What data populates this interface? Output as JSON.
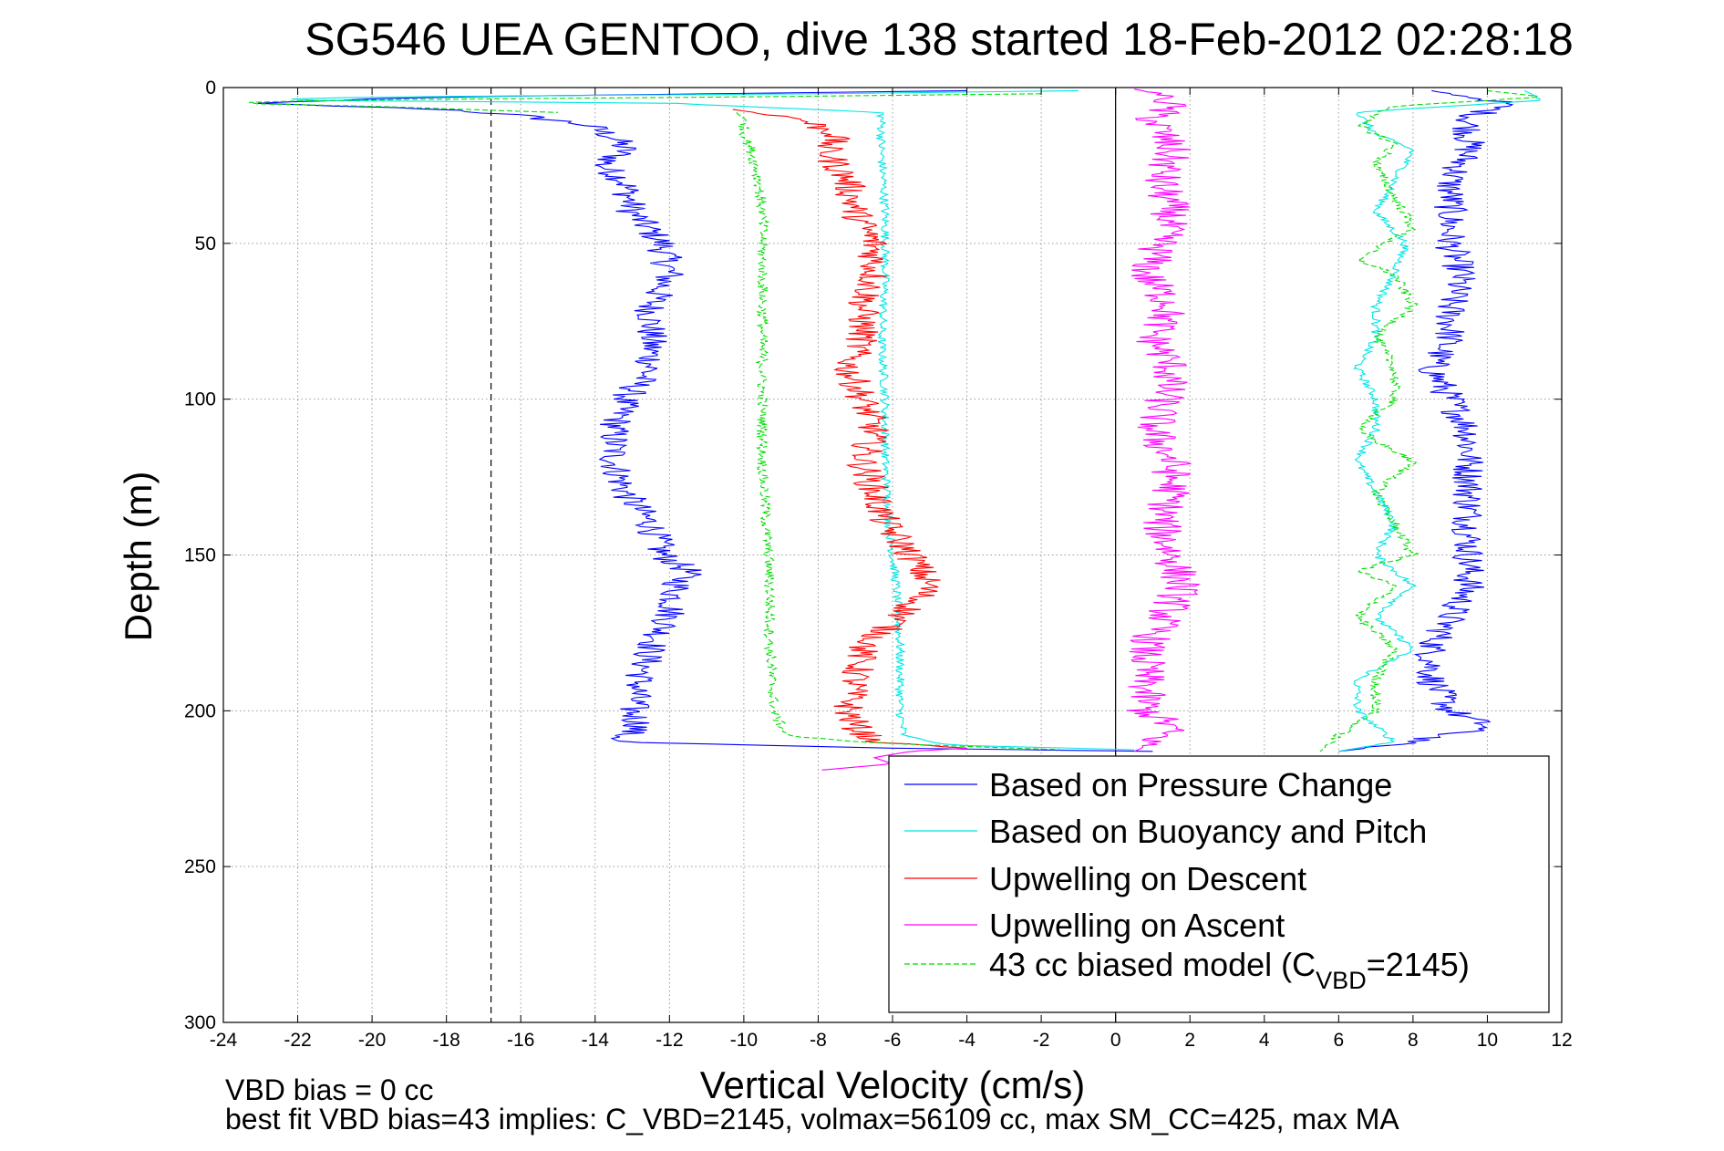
{
  "chart_data": {
    "type": "line",
    "title": "SG546 UEA GENTOO, dive 138 started 18-Feb-2012 02:28:18",
    "xlabel": "Vertical Velocity (cm/s)",
    "ylabel": "Depth (m)",
    "xlim": [
      -24,
      12
    ],
    "ylim": [
      0,
      300
    ],
    "y_reversed": true,
    "grid": true,
    "grid_style": "dotted",
    "x_ticks": [
      -24,
      -22,
      -20,
      -18,
      -16,
      -14,
      -12,
      -10,
      -8,
      -6,
      -4,
      -2,
      0,
      2,
      4,
      6,
      8,
      10,
      12
    ],
    "y_ticks": [
      0,
      50,
      100,
      150,
      200,
      250,
      300
    ],
    "x_tick_labels": [
      "-24",
      "-22",
      "-20",
      "-18",
      "-16",
      "-14",
      "-12",
      "-10",
      "-8",
      "-6",
      "-4",
      "-2",
      "0",
      "2",
      "4",
      "6",
      "8",
      "10",
      "12"
    ],
    "y_tick_labels": [
      "0",
      "50",
      "100",
      "150",
      "200",
      "250",
      "300"
    ],
    "reference_lines": [
      {
        "orientation": "vertical",
        "x": -16.8,
        "style": "dashed",
        "color": "#000000"
      },
      {
        "orientation": "vertical",
        "x": 0,
        "style": "solid",
        "color": "#000000"
      }
    ],
    "legend_placement": "lower-right",
    "legend": [
      {
        "label": "Based on Pressure Change",
        "color": "#0000ff",
        "style": "solid"
      },
      {
        "label": "Based on Buoyancy and Pitch",
        "color": "#00e5e5",
        "style": "solid"
      },
      {
        "label": "Upwelling on Descent",
        "color": "#ff0000",
        "style": "solid"
      },
      {
        "label": "Upwelling on Ascent",
        "color": "#ff00ff",
        "style": "solid"
      },
      {
        "label": "43 cc biased model (C",
        "sub": "VBD",
        "suffix": "=2145)",
        "color": "#00dd00",
        "style": "dashed"
      }
    ],
    "series": [
      {
        "name": "Based on Pressure Change",
        "color": "#0000ff",
        "style": "solid",
        "segments": [
          {
            "depth": [
              1,
              3,
              5,
              7,
              9,
              12,
              16,
              20,
              25,
              30,
              40,
              50,
              60,
              70,
              80,
              90,
              100,
              110,
              120,
              130,
              140,
              150,
              155,
              160,
              170,
              180,
              190,
              200,
              205,
              210,
              212
            ],
            "x": [
              -4,
              -18,
              -23.5,
              -18,
              -16,
              -14.2,
              -13.5,
              -13.2,
              -13.8,
              -13.2,
              -13.0,
              -12.2,
              -12.0,
              -12.5,
              -12.5,
              -12.5,
              -13.2,
              -13.5,
              -13.5,
              -13.2,
              -12.5,
              -12.2,
              -11.5,
              -11.8,
              -12.0,
              -12.5,
              -12.8,
              -13.0,
              -12.8,
              -13.5,
              -6
            ]
          },
          {
            "depth": [
              212,
              213
            ],
            "x": [
              -6,
              1
            ]
          },
          {
            "depth": [
              1,
              5,
              10,
              20,
              30,
              40,
              50,
              60,
              70,
              80,
              90,
              100,
              110,
              120,
              130,
              140,
              150,
              160,
              170,
              180,
              190,
              200,
              205,
              210,
              213
            ],
            "x": [
              8.5,
              10.5,
              9.5,
              9.5,
              9.0,
              9.0,
              9.0,
              9.3,
              9.0,
              9.0,
              8.5,
              9.0,
              9.5,
              9.5,
              9.5,
              9.5,
              9.5,
              9.5,
              9.0,
              8.5,
              8.5,
              9.0,
              10.0,
              8.0,
              6
            ]
          }
        ],
        "noise": 0.45
      },
      {
        "name": "Based on Buoyancy and Pitch",
        "color": "#00e5e5",
        "style": "solid",
        "segments": [
          {
            "depth": [
              1,
              2,
              3,
              4,
              5,
              8,
              12,
              20,
              40,
              60,
              80,
              100,
              120,
              140,
              150,
              160,
              180,
              200,
              208,
              211,
              212.5
            ],
            "x": [
              -1,
              -8,
              -20,
              -23,
              -12,
              -6.3,
              -6.3,
              -6.3,
              -6.2,
              -6.2,
              -6.3,
              -6.2,
              -6.2,
              -6.1,
              -6.0,
              -5.9,
              -5.8,
              -5.8,
              -5.7,
              -4.5,
              0.5
            ]
          },
          {
            "depth": [
              1,
              4,
              8,
              15,
              20,
              30,
              40,
              50,
              60,
              70,
              80,
              90,
              100,
              110,
              120,
              130,
              140,
              150,
              160,
              170,
              180,
              190,
              200,
              210,
              213
            ],
            "x": [
              11,
              11.5,
              6.5,
              7,
              8,
              7.5,
              7,
              7.8,
              7.5,
              7,
              7,
              6.5,
              7,
              7,
              6.5,
              7,
              7.5,
              7,
              8,
              7,
              8,
              6.5,
              6.5,
              7.5,
              6
            ]
          }
        ],
        "noise": 0.12
      },
      {
        "name": "Upwelling on Descent",
        "color": "#ff0000",
        "style": "solid",
        "segments": [
          {
            "depth": [
              7,
              10,
              15,
              20,
              25,
              30,
              40,
              50,
              60,
              70,
              80,
              90,
              100,
              110,
              120,
              130,
              140,
              150,
              160,
              170,
              180,
              190,
              200,
              205,
              210,
              212
            ],
            "x": [
              -10.3,
              -8.5,
              -7.5,
              -7.8,
              -7.5,
              -7.2,
              -7.0,
              -6.5,
              -6.5,
              -6.8,
              -6.8,
              -7.2,
              -6.8,
              -6.5,
              -6.8,
              -6.5,
              -6.2,
              -5.5,
              -5.0,
              -5.8,
              -6.8,
              -7.0,
              -7.2,
              -7.0,
              -6.5,
              -4
            ]
          }
        ],
        "noise": 0.45
      },
      {
        "name": "Upwelling on Ascent",
        "color": "#ff00ff",
        "style": "solid",
        "segments": [
          {
            "depth": [
              0.5,
              2,
              5,
              10,
              20,
              30,
              40,
              50,
              60,
              70,
              80,
              90,
              100,
              110,
              120,
              130,
              140,
              150,
              160,
              170,
              180,
              190,
              200,
              205,
              210,
              213
            ],
            "x": [
              0.5,
              1.2,
              1.5,
              1.0,
              1.5,
              1.2,
              1.5,
              1.2,
              0.8,
              1.5,
              1.0,
              1.5,
              1.3,
              1.0,
              1.5,
              1.5,
              1.2,
              1.5,
              1.8,
              1.3,
              0.8,
              0.8,
              0.8,
              1.5,
              1.0,
              0.5
            ]
          },
          {
            "depth": [
              212,
              213,
              215,
              217,
              219
            ],
            "x": [
              -4,
              -5.5,
              -6.5,
              -6.0,
              -7.9
            ]
          }
        ],
        "noise": 0.55
      },
      {
        "name": "43 cc biased model (CVBD=2145)",
        "color": "#00dd00",
        "style": "dashed",
        "segments": [
          {
            "depth": [
              2,
              3,
              4,
              5,
              6,
              8
            ],
            "x": [
              -2,
              -10,
              -21,
              -24,
              -20,
              -15
            ]
          },
          {
            "depth": [
              8,
              10,
              15,
              20,
              30,
              40,
              60,
              80,
              100,
              120,
              140,
              160,
              180,
              200,
              205,
              208,
              210,
              211,
              212.5
            ],
            "x": [
              -10.2,
              -10.0,
              -10.0,
              -9.8,
              -9.6,
              -9.5,
              -9.5,
              -9.5,
              -9.5,
              -9.5,
              -9.4,
              -9.3,
              -9.3,
              -9.2,
              -9.0,
              -8.8,
              -7.0,
              -5.0,
              -1.5
            ]
          },
          {
            "depth": [
              1,
              3,
              6,
              12,
              18,
              25,
              35,
              45,
              55,
              60,
              70,
              80,
              90,
              100,
              110,
              120,
              130,
              140,
              150,
              155,
              160,
              170,
              180,
              190,
              200,
              208,
              213
            ],
            "x": [
              10,
              11.5,
              7.5,
              6.5,
              7.5,
              7.0,
              7.5,
              8.0,
              6.5,
              7.5,
              8.0,
              7.0,
              7.5,
              7.5,
              6.5,
              8.0,
              7.0,
              7.5,
              8.0,
              6.5,
              7.5,
              6.5,
              7.5,
              7.0,
              7.0,
              6.0,
              5.5
            ]
          }
        ],
        "noise": 0.15
      }
    ]
  },
  "notes": {
    "line1": "VBD bias = 0 cc",
    "line2": "best fit VBD bias=43 implies: C_VBD=2145, volmax=56109 cc, max SM_CC=425, max MA"
  }
}
